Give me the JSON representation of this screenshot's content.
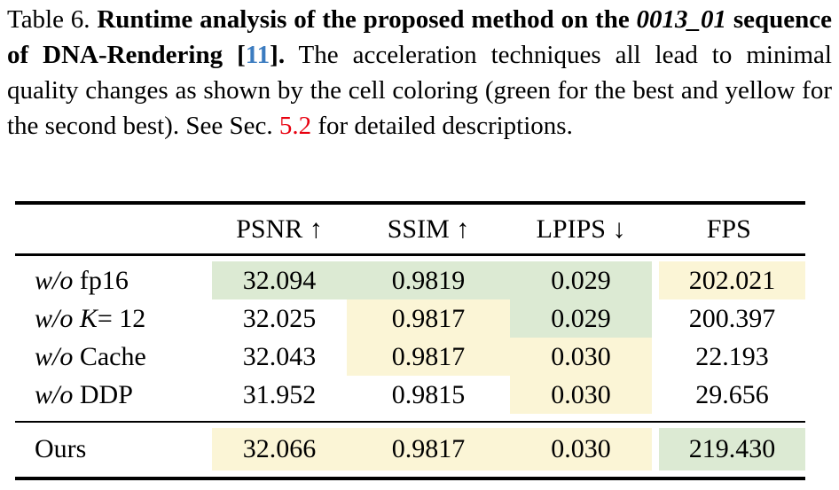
{
  "caption": {
    "label": "Table 6. ",
    "bold1": "Runtime analysis of the proposed method on the ",
    "sequence_id": "0013_01",
    "bold2": " sequence of DNA-Rendering",
    "cite_prefix": " [",
    "cite_number": "11",
    "cite_suffix": "].",
    "normal1": " The acceleration techniques all lead to minimal quality changes as shown by the cell coloring (green for the best and yellow for the second best). See Sec. ",
    "section_ref": "5.2",
    "normal2": " for detailed descriptions."
  },
  "colors": {
    "best": "#dcead3",
    "second": "#fbf5d6",
    "cite_blue": "#3c7cc0",
    "ref_red": "#e8000f",
    "rule_black": "#000000"
  },
  "table": {
    "columns": [
      {
        "key": "psnr",
        "label": "PSNR",
        "arrow": "↑",
        "arrow_name": "up-arrow-icon"
      },
      {
        "key": "ssim",
        "label": "SSIM",
        "arrow": "↑",
        "arrow_name": "up-arrow-icon"
      },
      {
        "key": "lpips",
        "label": "LPIPS",
        "arrow": "↓",
        "arrow_name": "down-arrow-icon"
      },
      {
        "key": "fps",
        "label": "FPS",
        "arrow": "",
        "arrow_name": ""
      }
    ],
    "rows": [
      {
        "label": {
          "wo": "w/o",
          "math": "",
          "rest": "fp16"
        },
        "cells": {
          "psnr": {
            "value": "32.094",
            "highlight": "best"
          },
          "ssim": {
            "value": "0.9819",
            "highlight": "best"
          },
          "lpips": {
            "value": "0.029",
            "highlight": "best"
          },
          "fps": {
            "value": "202.021",
            "highlight": "second"
          }
        }
      },
      {
        "label": {
          "wo": "w/o",
          "math": "K",
          "rest": " = 12"
        },
        "cells": {
          "psnr": {
            "value": "32.025",
            "highlight": "none"
          },
          "ssim": {
            "value": "0.9817",
            "highlight": "second"
          },
          "lpips": {
            "value": "0.029",
            "highlight": "best"
          },
          "fps": {
            "value": "200.397",
            "highlight": "none"
          }
        }
      },
      {
        "label": {
          "wo": "w/o",
          "math": "",
          "rest": "Cache"
        },
        "cells": {
          "psnr": {
            "value": "32.043",
            "highlight": "none"
          },
          "ssim": {
            "value": "0.9817",
            "highlight": "second"
          },
          "lpips": {
            "value": "0.030",
            "highlight": "second"
          },
          "fps": {
            "value": "22.193",
            "highlight": "none"
          }
        }
      },
      {
        "label": {
          "wo": "w/o",
          "math": "",
          "rest": "DDP"
        },
        "cells": {
          "psnr": {
            "value": "31.952",
            "highlight": "none"
          },
          "ssim": {
            "value": "0.9815",
            "highlight": "none"
          },
          "lpips": {
            "value": "0.030",
            "highlight": "second"
          },
          "fps": {
            "value": "29.656",
            "highlight": "none"
          }
        }
      }
    ],
    "ours": {
      "label": {
        "wo": "",
        "math": "",
        "rest": "Ours"
      },
      "cells": {
        "psnr": {
          "value": "32.066",
          "highlight": "second"
        },
        "ssim": {
          "value": "0.9817",
          "highlight": "second"
        },
        "lpips": {
          "value": "0.030",
          "highlight": "second"
        },
        "fps": {
          "value": "219.430",
          "highlight": "best"
        }
      }
    }
  }
}
